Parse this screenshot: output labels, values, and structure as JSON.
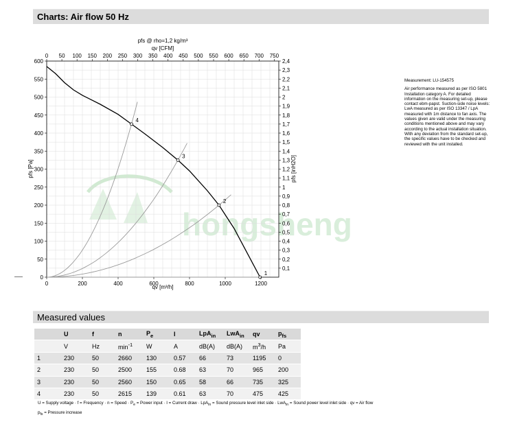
{
  "header": {
    "charts_title": "Charts: Air flow 50 Hz",
    "measured_title": "Measured values"
  },
  "colors": {
    "header_bg": "#dcdcdc",
    "curve": "#000000",
    "system_curve": "#9a9a9a",
    "watermark": "#7bc47f"
  },
  "watermark_text": "hongsheng",
  "measurement": {
    "id": "Measurement: LU-154575",
    "text": "Air performance measured as per ISO 5801 Installation category A. For detailed information on the measuring set-up, please contact ebm-papst. Suction-side noise levels: LwA measured as per ISO 13347 / LpA measured with 1m distance to fan axis. The values given are valid under the measuring conditions mentioned above and may vary according to the actual installation situation. With any deviation from the standard set-up, the specific values have to be checked and reviewed with the unit installed."
  },
  "chart_data": {
    "type": "line",
    "title": "pfs @ rho=1,2 kg/m³",
    "xlabel": "qv [m³/h]",
    "ylabel": "pfs [Pa]",
    "x2label": "qv [CFM]",
    "y2label": "pfs [inH2O]",
    "xlim": [
      0,
      1300
    ],
    "ylim": [
      0,
      600
    ],
    "x2lim": [
      0,
      765
    ],
    "y2lim": [
      0,
      2.4
    ],
    "xticks": [
      0,
      200,
      400,
      600,
      800,
      1000,
      1200
    ],
    "yticks": [
      0,
      50,
      100,
      150,
      200,
      250,
      300,
      350,
      400,
      450,
      500,
      550,
      600
    ],
    "x2ticks": [
      0,
      50,
      100,
      150,
      200,
      250,
      300,
      350,
      400,
      450,
      500,
      550,
      600,
      650,
      700,
      750
    ],
    "y2ticks": [
      "0,1",
      "0,2",
      "0,3",
      "0,4",
      "0,5",
      "0,6",
      "0,7",
      "0,8",
      "0,9",
      "1",
      "1,1",
      "1,2",
      "1,3",
      "1,4",
      "1,5",
      "1,6",
      "1,7",
      "1,8",
      "1,9",
      "2",
      "2,1",
      "2,2",
      "2,3",
      "2,4"
    ],
    "grid": true,
    "series": [
      {
        "x": [
          0,
          50,
          100,
          150,
          200,
          300,
          400,
          475,
          550,
          650,
          735,
          800,
          900,
          965,
          1050,
          1120,
          1195
        ],
        "y": [
          585,
          565,
          540,
          520,
          505,
          480,
          452,
          425,
          398,
          360,
          325,
          295,
          240,
          200,
          135,
          70,
          0
        ]
      }
    ],
    "system_curves": [
      {
        "label": "1",
        "x": 1195,
        "y": 0
      },
      {
        "label": "2",
        "x": 965,
        "y": 200
      },
      {
        "label": "3",
        "x": 735,
        "y": 325
      },
      {
        "label": "4",
        "x": 475,
        "y": 425
      }
    ],
    "operating_points": [
      {
        "label": "1",
        "x": 1195,
        "y": 0
      },
      {
        "label": "2",
        "x": 965,
        "y": 200
      },
      {
        "label": "3",
        "x": 735,
        "y": 325
      },
      {
        "label": "4",
        "x": 475,
        "y": 425
      }
    ]
  },
  "table": {
    "headers": [
      {
        "main": "",
        "sub": ""
      },
      {
        "main": "U",
        "sub": ""
      },
      {
        "main": "f",
        "sub": ""
      },
      {
        "main": "n",
        "sub": ""
      },
      {
        "main": "P",
        "sub": "e"
      },
      {
        "main": "I",
        "sub": ""
      },
      {
        "main": "LpA",
        "sub": "in"
      },
      {
        "main": "LwA",
        "sub": "in"
      },
      {
        "main": "qv",
        "sub": ""
      },
      {
        "main": "p",
        "sub": "fs"
      }
    ],
    "units": [
      {
        "main": "",
        "sup": ""
      },
      {
        "main": "V",
        "sup": ""
      },
      {
        "main": "Hz",
        "sup": ""
      },
      {
        "main": "min",
        "sup": "-1"
      },
      {
        "main": "W",
        "sup": ""
      },
      {
        "main": "A",
        "sup": ""
      },
      {
        "main": "dB(A)",
        "sup": ""
      },
      {
        "main": "dB(A)",
        "sup": ""
      },
      {
        "main": "m",
        "sup": "3",
        "tail": "/h"
      },
      {
        "main": "Pa",
        "sup": ""
      }
    ],
    "rows": [
      [
        "1",
        "230",
        "50",
        "2660",
        "130",
        "0.57",
        "66",
        "73",
        "1195",
        "0"
      ],
      [
        "2",
        "230",
        "50",
        "2500",
        "155",
        "0.68",
        "63",
        "70",
        "965",
        "200"
      ],
      [
        "3",
        "230",
        "50",
        "2560",
        "150",
        "0.65",
        "58",
        "66",
        "735",
        "325"
      ],
      [
        "4",
        "230",
        "50",
        "2615",
        "139",
        "0.61",
        "63",
        "70",
        "475",
        "425"
      ]
    ]
  },
  "legend": {
    "line1": "U = Supply voltage · f = Frequency · n = Speed · P",
    "line1_sub": "e",
    "line1_rest": " = Power input · I = Current draw · LpA",
    "line1_sub2": "in",
    "line1_rest2": " = Sound pressure level inlet side · LwA",
    "line1_sub3": "in",
    "line1_rest3": " = Sound power level inlet side · qv = Air flow",
    "line2_main": "p",
    "line2_sub": "fs",
    "line2_rest": " = Pressure increase"
  }
}
